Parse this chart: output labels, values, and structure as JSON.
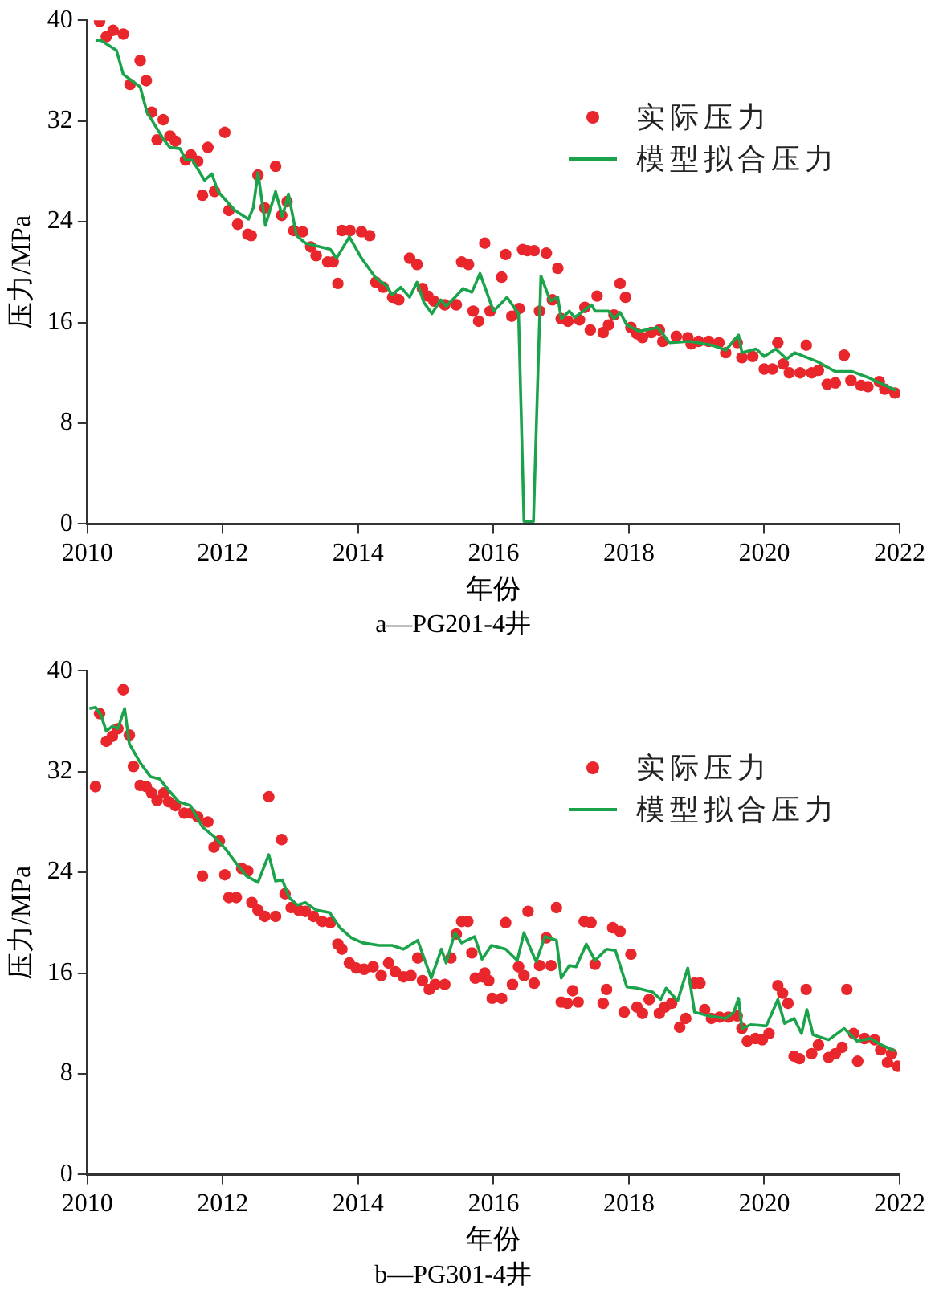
{
  "chart_data": [
    {
      "type": "scatter",
      "title": "a—PG201-4井",
      "xlabel": "年份",
      "ylabel": "压力/MPa",
      "xlim": [
        2010,
        2022
      ],
      "xticks": [
        2010,
        2012,
        2014,
        2016,
        2018,
        2020,
        2022
      ],
      "ylim": [
        0,
        40
      ],
      "yticks": [
        0,
        8,
        16,
        24,
        32,
        40
      ],
      "grid": false,
      "legend": "top right",
      "series": [
        {
          "name": "实际压力",
          "type": "scatter",
          "marker": "circle",
          "color": "#e8262b",
          "x": [
            2010.18,
            2010.28,
            2010.38,
            2010.53,
            2010.63,
            2010.78,
            2010.87,
            2010.95,
            2011.03,
            2011.12,
            2011.22,
            2011.3,
            2011.45,
            2011.53,
            2011.63,
            2011.7,
            2011.78,
            2011.88,
            2012.03,
            2012.09,
            2012.22,
            2012.37,
            2012.42,
            2012.52,
            2012.62,
            2012.78,
            2012.87,
            2012.95,
            2013.05,
            2013.18,
            2013.3,
            2013.38,
            2013.55,
            2013.63,
            2013.7,
            2013.76,
            2013.88,
            2014.05,
            2014.17,
            2014.26,
            2014.37,
            2014.51,
            2014.6,
            2014.76,
            2014.87,
            2014.95,
            2015.03,
            2015.12,
            2015.28,
            2015.45,
            2015.53,
            2015.63,
            2015.7,
            2015.78,
            2015.87,
            2015.95,
            2016.12,
            2016.18,
            2016.27,
            2016.38,
            2016.43,
            2016.5,
            2016.6,
            2016.68,
            2016.78,
            2016.87,
            2016.95,
            2017.0,
            2017.1,
            2017.27,
            2017.35,
            2017.43,
            2017.53,
            2017.62,
            2017.7,
            2017.78,
            2017.87,
            2017.95,
            2018.03,
            2018.12,
            2018.2,
            2018.33,
            2018.45,
            2018.5,
            2018.7,
            2018.87,
            2018.92,
            2019.03,
            2019.18,
            2019.33,
            2019.43,
            2019.6,
            2019.67,
            2019.83,
            2020.0,
            2020.12,
            2020.2,
            2020.28,
            2020.37,
            2020.53,
            2020.62,
            2020.7,
            2020.8,
            2020.93,
            2021.05,
            2021.18,
            2021.28,
            2021.43,
            2021.53,
            2021.7,
            2021.78,
            2021.93
          ],
          "values": [
            39.9,
            38.7,
            39.2,
            38.9,
            34.9,
            36.8,
            35.2,
            32.7,
            30.5,
            32.1,
            30.8,
            30.4,
            28.9,
            29.3,
            28.8,
            26.1,
            29.9,
            26.4,
            31.1,
            24.9,
            23.8,
            23.0,
            22.9,
            27.7,
            25.1,
            28.4,
            24.5,
            25.6,
            23.3,
            23.2,
            22.0,
            21.3,
            20.8,
            20.8,
            19.1,
            23.3,
            23.3,
            23.2,
            22.9,
            19.2,
            18.8,
            18.0,
            17.8,
            21.1,
            20.6,
            18.7,
            18.1,
            17.7,
            17.4,
            17.4,
            20.8,
            20.6,
            16.9,
            16.1,
            22.3,
            16.9,
            19.6,
            21.4,
            16.5,
            17.1,
            21.8,
            21.7,
            21.7,
            16.9,
            21.5,
            17.8,
            20.3,
            16.3,
            16.1,
            16.2,
            17.2,
            15.4,
            18.1,
            15.2,
            15.8,
            16.6,
            19.1,
            18.0,
            15.6,
            15.1,
            14.8,
            15.2,
            15.4,
            14.5,
            14.9,
            14.8,
            14.3,
            14.5,
            14.5,
            14.4,
            13.6,
            14.4,
            13.2,
            13.3,
            12.3,
            12.3,
            14.4,
            12.7,
            12.0,
            12.0,
            14.2,
            12.0,
            12.2,
            11.1,
            11.2,
            13.4,
            11.4,
            11.0,
            10.9,
            11.3,
            10.7,
            10.4
          ]
        },
        {
          "name": "模型拟合压力",
          "type": "line",
          "marker": "none",
          "line_style": "solid",
          "color": "#1aa34a",
          "x": [
            2010.12,
            2010.2,
            2010.43,
            2010.53,
            2010.78,
            2010.88,
            2011.13,
            2011.22,
            2011.37,
            2011.45,
            2011.55,
            2011.73,
            2011.84,
            2011.93,
            2012.18,
            2012.38,
            2012.45,
            2012.52,
            2012.63,
            2012.78,
            2012.88,
            2012.97,
            2013.09,
            2013.22,
            2013.59,
            2013.68,
            2013.87,
            2014.05,
            2014.25,
            2014.42,
            2014.5,
            2014.63,
            2014.76,
            2014.87,
            2014.97,
            2015.09,
            2015.22,
            2015.3,
            2015.43,
            2015.55,
            2015.68,
            2015.8,
            2016.0,
            2016.2,
            2016.37,
            2016.45,
            2016.59,
            2016.7,
            2016.84,
            2016.95,
            2017.0,
            2017.12,
            2017.2,
            2017.45,
            2017.5,
            2017.7,
            2017.78,
            2017.87,
            2017.97,
            2018.15,
            2018.43,
            2018.6,
            2018.9,
            2019.23,
            2019.43,
            2019.62,
            2019.67,
            2019.88,
            2020.0,
            2020.17,
            2020.33,
            2020.45,
            2020.78,
            2021.05,
            2021.3,
            2021.55,
            2021.95
          ],
          "values": [
            38.4,
            38.4,
            37.6,
            35.7,
            34.7,
            32.7,
            30.5,
            29.9,
            29.8,
            28.9,
            28.9,
            27.3,
            27.8,
            26.4,
            24.9,
            24.2,
            25.1,
            27.9,
            23.7,
            26.4,
            24.4,
            26.2,
            22.9,
            22.3,
            21.8,
            21.1,
            22.8,
            21.1,
            19.6,
            18.9,
            18.2,
            18.8,
            18.0,
            19.2,
            17.6,
            16.7,
            17.8,
            17.3,
            18.0,
            18.7,
            18.4,
            19.9,
            16.9,
            18.0,
            16.7,
            0.2,
            0.2,
            19.7,
            17.7,
            18.0,
            16.3,
            16.9,
            16.4,
            17.4,
            16.9,
            16.9,
            16.3,
            16.8,
            15.8,
            15.3,
            15.6,
            14.4,
            14.5,
            14.2,
            13.8,
            15.0,
            13.6,
            13.9,
            13.3,
            13.9,
            13.1,
            13.6,
            12.9,
            12.1,
            12.1,
            11.6,
            10.6
          ]
        }
      ]
    },
    {
      "type": "scatter",
      "title": "b—PG301-4井",
      "xlabel": "年份",
      "ylabel": "压力/MPa",
      "xlim": [
        2010,
        2022
      ],
      "xticks": [
        2010,
        2012,
        2014,
        2016,
        2018,
        2020,
        2022
      ],
      "ylim": [
        0,
        40
      ],
      "yticks": [
        0,
        8,
        16,
        24,
        32,
        40
      ],
      "grid": false,
      "legend": "top right",
      "series": [
        {
          "name": "实际压力",
          "type": "scatter",
          "marker": "circle",
          "color": "#e8262b",
          "x": [
            2010.12,
            2010.18,
            2010.28,
            2010.37,
            2010.45,
            2010.53,
            2010.62,
            2010.68,
            2010.78,
            2010.87,
            2010.95,
            2011.03,
            2011.13,
            2011.2,
            2011.3,
            2011.43,
            2011.53,
            2011.63,
            2011.7,
            2011.78,
            2011.87,
            2011.95,
            2012.03,
            2012.09,
            2012.2,
            2012.28,
            2012.37,
            2012.43,
            2012.52,
            2012.62,
            2012.68,
            2012.78,
            2012.87,
            2012.92,
            2013.01,
            2013.12,
            2013.22,
            2013.34,
            2013.47,
            2013.59,
            2013.7,
            2013.76,
            2013.87,
            2013.97,
            2014.09,
            2014.22,
            2014.34,
            2014.45,
            2014.55,
            2014.67,
            2014.78,
            2014.88,
            2014.95,
            2015.05,
            2015.14,
            2015.28,
            2015.37,
            2015.45,
            2015.53,
            2015.62,
            2015.68,
            2015.73,
            2015.84,
            2015.87,
            2015.93,
            2015.98,
            2016.12,
            2016.18,
            2016.28,
            2016.37,
            2016.45,
            2016.51,
            2016.6,
            2016.68,
            2016.78,
            2016.85,
            2016.93,
            2017.0,
            2017.09,
            2017.17,
            2017.25,
            2017.34,
            2017.44,
            2017.5,
            2017.62,
            2017.67,
            2017.76,
            2017.87,
            2017.93,
            2018.03,
            2018.12,
            2018.2,
            2018.3,
            2018.45,
            2018.53,
            2018.63,
            2018.75,
            2018.84,
            2018.97,
            2019.05,
            2019.12,
            2019.22,
            2019.34,
            2019.47,
            2019.6,
            2019.67,
            2019.75,
            2019.87,
            2019.97,
            2020.07,
            2020.2,
            2020.27,
            2020.35,
            2020.44,
            2020.52,
            2020.62,
            2020.7,
            2020.8,
            2020.95,
            2021.05,
            2021.15,
            2021.22,
            2021.32,
            2021.38,
            2021.48,
            2021.63,
            2021.72,
            2021.82,
            2021.88,
            2021.97
          ],
          "values": [
            30.8,
            36.6,
            34.4,
            34.8,
            35.4,
            38.5,
            34.9,
            32.4,
            30.9,
            30.8,
            30.3,
            29.7,
            30.3,
            29.6,
            29.3,
            28.7,
            28.7,
            28.4,
            23.7,
            28.0,
            26.0,
            26.5,
            23.8,
            22.0,
            22.0,
            24.3,
            24.1,
            21.6,
            21.0,
            20.5,
            30.0,
            20.5,
            26.6,
            22.3,
            21.2,
            21.0,
            20.9,
            20.5,
            20.1,
            20.0,
            18.3,
            17.9,
            16.8,
            16.4,
            16.3,
            16.5,
            15.8,
            16.8,
            16.1,
            15.7,
            15.8,
            17.2,
            15.4,
            14.7,
            15.1,
            15.1,
            17.2,
            19.1,
            20.1,
            20.1,
            17.6,
            15.6,
            15.7,
            16.0,
            15.4,
            14.0,
            14.0,
            20.0,
            15.1,
            16.5,
            15.8,
            20.9,
            15.2,
            16.6,
            18.8,
            16.6,
            21.2,
            13.7,
            13.6,
            14.6,
            13.7,
            20.1,
            20.0,
            16.7,
            13.6,
            14.7,
            19.6,
            19.3,
            12.9,
            17.5,
            13.3,
            12.8,
            13.9,
            12.8,
            13.3,
            13.6,
            11.7,
            12.4,
            15.2,
            15.2,
            13.1,
            12.4,
            12.5,
            12.5,
            12.6,
            11.6,
            10.6,
            10.8,
            10.7,
            11.2,
            15.0,
            14.4,
            13.6,
            9.4,
            9.2,
            14.7,
            9.6,
            10.3,
            9.3,
            9.6,
            10.1,
            14.7,
            11.2,
            9.0,
            10.8,
            10.7,
            9.9,
            8.9,
            9.6,
            8.6
          ]
        },
        {
          "name": "模型拟合压力",
          "type": "line",
          "marker": "none",
          "line_style": "solid",
          "color": "#1aa34a",
          "x": [
            2010.03,
            2010.12,
            2010.2,
            2010.28,
            2010.37,
            2010.45,
            2010.55,
            2010.62,
            2010.78,
            2010.93,
            2011.07,
            2011.22,
            2011.35,
            2011.52,
            2011.7,
            2011.88,
            2012.05,
            2012.2,
            2012.35,
            2012.52,
            2012.68,
            2012.78,
            2012.88,
            2012.98,
            2013.1,
            2013.22,
            2013.38,
            2013.58,
            2013.73,
            2013.9,
            2014.07,
            2014.31,
            2014.5,
            2014.67,
            2014.88,
            2015.08,
            2015.23,
            2015.3,
            2015.43,
            2015.53,
            2015.72,
            2015.83,
            2015.97,
            2016.18,
            2016.35,
            2016.45,
            2016.55,
            2016.63,
            2016.76,
            2016.93,
            2017.0,
            2017.12,
            2017.22,
            2017.37,
            2017.5,
            2017.67,
            2017.8,
            2017.97,
            2018.12,
            2018.35,
            2018.47,
            2018.55,
            2018.72,
            2018.87,
            2018.97,
            2019.18,
            2019.43,
            2019.55,
            2019.62,
            2019.67,
            2019.8,
            2020.03,
            2020.2,
            2020.3,
            2020.44,
            2020.55,
            2020.63,
            2020.72,
            2020.95,
            2021.18,
            2021.37,
            2021.57,
            2021.73,
            2021.93
          ],
          "values": [
            37.0,
            37.1,
            36.5,
            35.2,
            35.6,
            35.4,
            37.0,
            34.2,
            32.7,
            31.6,
            31.4,
            30.4,
            29.6,
            29.3,
            27.6,
            26.8,
            25.8,
            24.7,
            23.7,
            23.2,
            25.4,
            23.3,
            23.4,
            22.0,
            21.4,
            21.6,
            21.0,
            20.8,
            19.6,
            18.8,
            18.4,
            18.2,
            18.2,
            17.9,
            18.6,
            15.6,
            17.9,
            16.8,
            19.2,
            18.4,
            18.9,
            17.1,
            18.2,
            17.9,
            17.0,
            19.2,
            17.9,
            16.9,
            18.9,
            18.6,
            15.6,
            16.6,
            16.5,
            18.3,
            17.0,
            17.9,
            17.8,
            14.9,
            14.8,
            14.5,
            13.9,
            14.8,
            13.8,
            16.4,
            12.9,
            12.6,
            12.4,
            12.9,
            14.0,
            11.6,
            11.9,
            11.8,
            13.9,
            12.0,
            12.4,
            11.2,
            13.1,
            11.1,
            10.7,
            11.6,
            10.6,
            10.8,
            10.3,
            9.8
          ]
        }
      ]
    }
  ]
}
